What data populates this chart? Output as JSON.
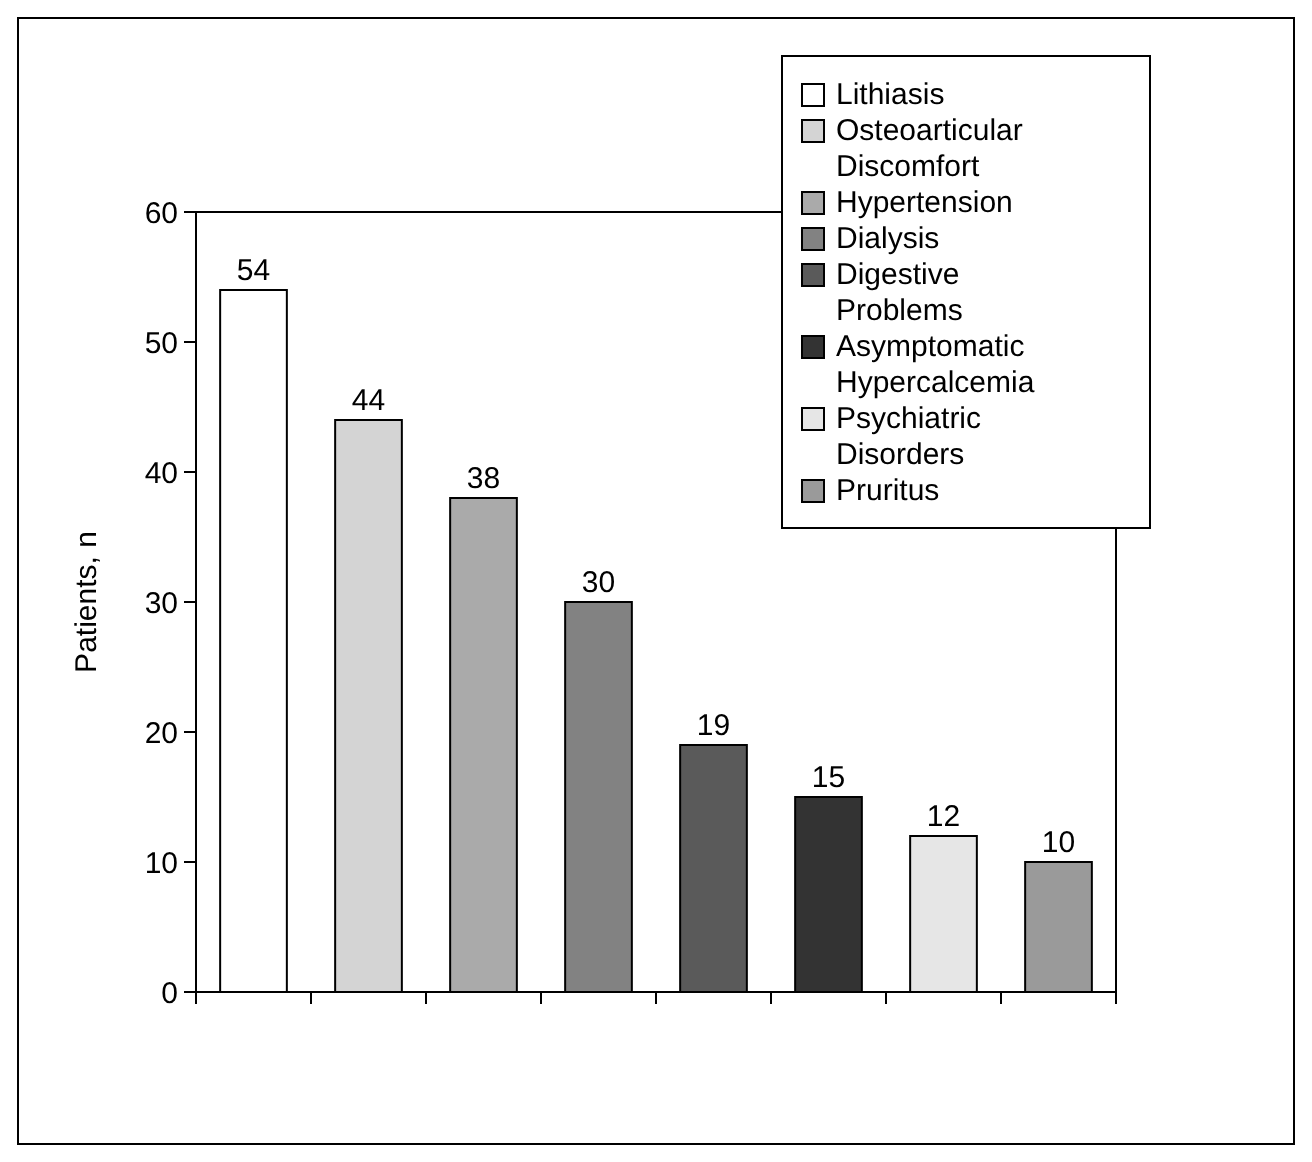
{
  "chart_data": {
    "type": "bar",
    "ylabel": "Patients, n",
    "categories": [
      null,
      null,
      null,
      null,
      null,
      null,
      null,
      null
    ],
    "series": [
      {
        "name": "Lithiasis",
        "color": "#ffffff",
        "values": [
          54,
          null,
          null,
          null,
          null,
          null,
          null,
          null
        ]
      },
      {
        "name": "Osteoarticular Discomfort",
        "color": "#d4d4d4",
        "values": [
          null,
          44,
          null,
          null,
          null,
          null,
          null,
          null
        ]
      },
      {
        "name": "Hypertension",
        "color": "#aaaaaa",
        "values": [
          null,
          null,
          38,
          null,
          null,
          null,
          null,
          null
        ]
      },
      {
        "name": "Dialysis",
        "color": "#828282",
        "values": [
          null,
          null,
          null,
          30,
          null,
          null,
          null,
          null
        ]
      },
      {
        "name": "Digestive Problems",
        "color": "#5a5a5a",
        "values": [
          null,
          null,
          null,
          null,
          19,
          null,
          null,
          null
        ]
      },
      {
        "name": "Asymptomatic Hypercalcemia",
        "color": "#333333",
        "values": [
          null,
          null,
          null,
          null,
          null,
          15,
          null,
          null
        ]
      },
      {
        "name": "Psychiatric Disorders",
        "color": "#e6e6e6",
        "values": [
          null,
          null,
          null,
          null,
          null,
          null,
          12,
          null
        ]
      },
      {
        "name": "Pruritus",
        "color": "#9a9a9a",
        "values": [
          null,
          null,
          null,
          null,
          null,
          null,
          null,
          10
        ]
      }
    ],
    "ylim": [
      0,
      60
    ],
    "yticks": [
      0,
      10,
      20,
      30,
      40,
      50,
      60
    ],
    "data_labels": true,
    "legend": "top right",
    "tick_labels": "y"
  }
}
